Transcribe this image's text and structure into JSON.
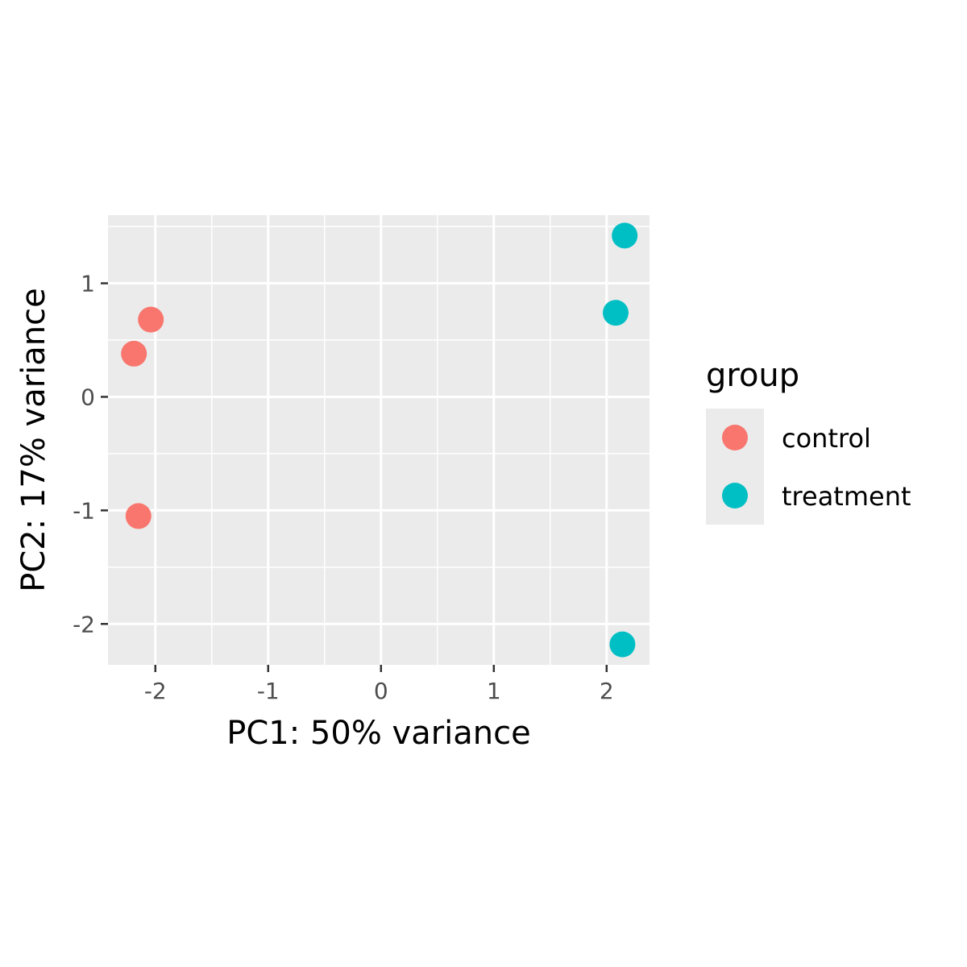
{
  "chart_data": {
    "type": "scatter",
    "xlabel": "PC1: 50% variance",
    "ylabel": "PC2: 17% variance",
    "xlim": [
      -2.42,
      2.38
    ],
    "ylim": [
      -2.36,
      1.6
    ],
    "xticks": [
      -2,
      -1,
      0,
      1,
      2
    ],
    "xtick_labels": [
      "-2",
      "-1",
      "0",
      "1",
      "2"
    ],
    "yticks": [
      -2,
      -1,
      0,
      1
    ],
    "ytick_labels": [
      "-2",
      "-1",
      "0",
      "1"
    ],
    "grid": true,
    "legend": {
      "title": "group",
      "position": "right"
    },
    "series": [
      {
        "name": "control",
        "color": "#F8766D",
        "points": [
          {
            "x": -2.04,
            "y": 0.68
          },
          {
            "x": -2.19,
            "y": 0.38
          },
          {
            "x": -2.15,
            "y": -1.05
          }
        ]
      },
      {
        "name": "treatment",
        "color": "#00BFC4",
        "points": [
          {
            "x": 2.16,
            "y": 1.42
          },
          {
            "x": 2.08,
            "y": 0.74
          },
          {
            "x": 2.14,
            "y": -2.18
          }
        ]
      }
    ]
  }
}
